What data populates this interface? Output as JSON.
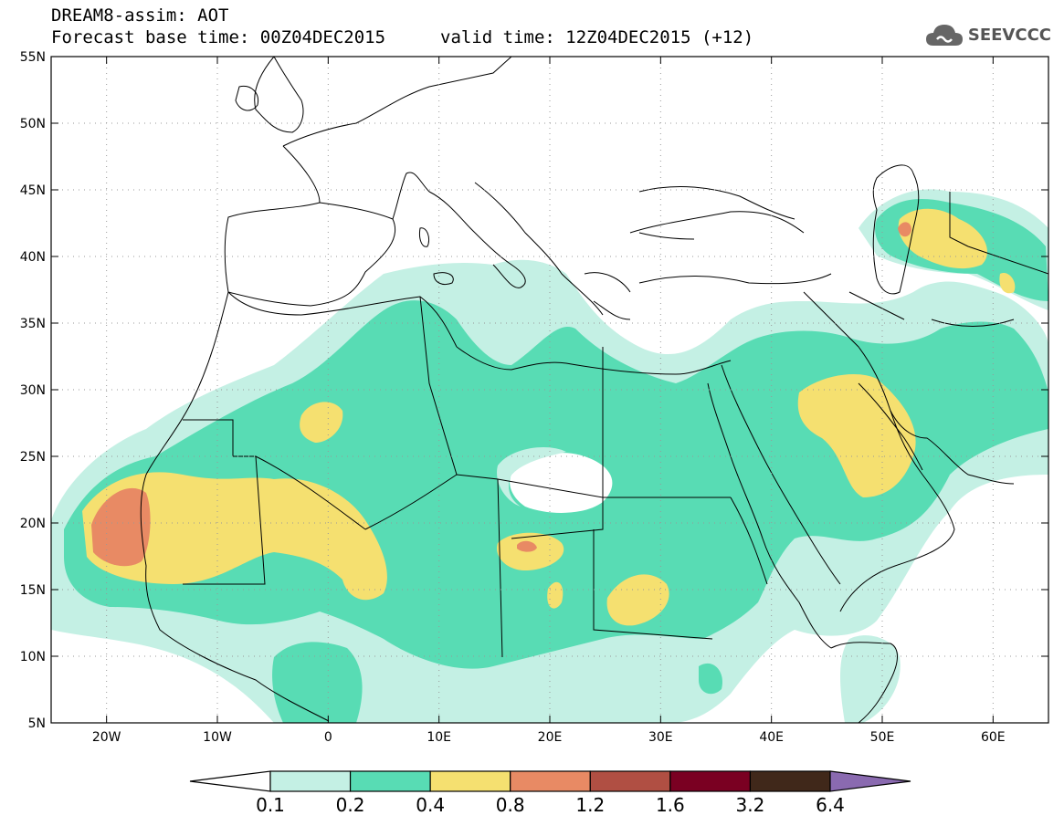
{
  "header": {
    "title": "DREAM8-assim: AOT",
    "base_time": "Forecast base time: 00Z04DEC2015",
    "valid_time": "valid time: 12Z04DEC2015 (+12)"
  },
  "logo": {
    "text": "SEEVCCC",
    "icon": "cloud-icon"
  },
  "map": {
    "lon_range": [
      -25,
      65
    ],
    "lat_range": [
      5,
      55
    ],
    "lat_ticks": [
      "55N",
      "50N",
      "45N",
      "40N",
      "35N",
      "30N",
      "25N",
      "20N",
      "15N",
      "10N",
      "5N"
    ],
    "lat_tick_values": [
      55,
      50,
      45,
      40,
      35,
      30,
      25,
      20,
      15,
      10,
      5
    ],
    "lon_ticks": [
      "20W",
      "10W",
      "0",
      "10E",
      "20E",
      "30E",
      "40E",
      "50E",
      "60E"
    ],
    "lon_tick_values": [
      -20,
      -10,
      0,
      10,
      20,
      30,
      40,
      50,
      60
    ],
    "grid": "dotted"
  },
  "colorbar": {
    "labels": [
      "0.1",
      "0.2",
      "0.4",
      "0.8",
      "1.2",
      "1.6",
      "3.2",
      "6.4"
    ],
    "colors": [
      "#ffffff",
      "#c4f0e4",
      "#58dcb4",
      "#f5e070",
      "#e88a64",
      "#b04f43",
      "#7a0022",
      "#40281a",
      "#8a6ab0"
    ]
  }
}
